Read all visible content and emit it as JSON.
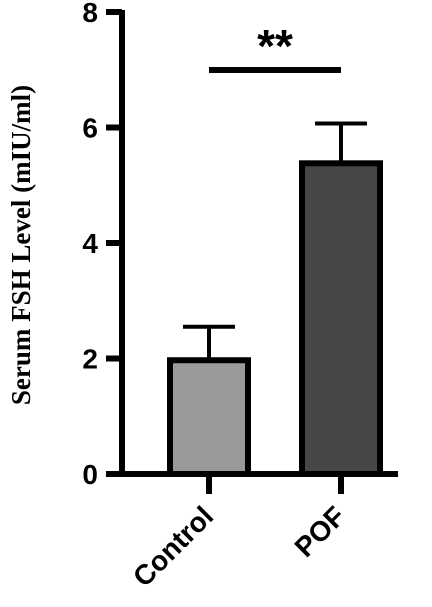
{
  "chart_data": {
    "type": "bar",
    "categories": [
      "Control",
      "POF"
    ],
    "values": [
      1.97,
      5.38
    ],
    "errors": [
      0.58,
      0.69
    ],
    "colors": [
      "#9a9a9a",
      "#474747"
    ],
    "edge_color": "#000000",
    "title": "",
    "xlabel": "",
    "ylabel": "Serum FSH Level (mIU/ml)",
    "ylim": [
      0,
      8
    ],
    "yticks": [
      0,
      2,
      4,
      6,
      8
    ],
    "annotation": {
      "text": "**",
      "between": [
        "Control",
        "POF"
      ]
    },
    "grid": false,
    "legend": "none"
  }
}
